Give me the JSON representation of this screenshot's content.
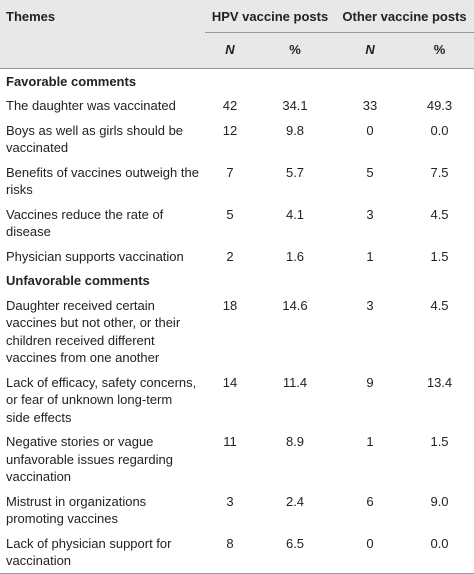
{
  "table": {
    "header": {
      "themes": "Themes",
      "groups": [
        "HPV vaccine posts",
        "Other vaccine posts"
      ],
      "subheaders": [
        "N",
        "%",
        "N",
        "%"
      ]
    },
    "sections": [
      {
        "title": "Favorable comments",
        "rows": [
          [
            "The daughter was vaccinated",
            "42",
            "34.1",
            "33",
            "49.3"
          ],
          [
            "Boys as well as girls should be vaccinated",
            "12",
            "9.8",
            "0",
            "0.0"
          ],
          [
            "Benefits of vaccines outweigh the risks",
            "7",
            "5.7",
            "5",
            "7.5"
          ],
          [
            "Vaccines reduce the rate of disease",
            "5",
            "4.1",
            "3",
            "4.5"
          ],
          [
            "Physician supports vaccination",
            "2",
            "1.6",
            "1",
            "1.5"
          ]
        ]
      },
      {
        "title": "Unfavorable comments",
        "rows": [
          [
            "Daughter received certain vaccines but not other, or their children received different vaccines from one another",
            "18",
            "14.6",
            "3",
            "4.5"
          ],
          [
            "Lack of efficacy, safety concerns, or fear of unknown long-term side effects",
            "14",
            "11.4",
            "9",
            "13.4"
          ],
          [
            "Negative stories or vague unfavorable issues regarding vaccination",
            "11",
            "8.9",
            "1",
            "1.5"
          ],
          [
            "Mistrust in organizations promoting vaccines",
            "3",
            "2.4",
            "6",
            "9.0"
          ],
          [
            "Lack of physician support for vaccination",
            "8",
            "6.5",
            "0",
            "0.0"
          ]
        ]
      }
    ]
  }
}
